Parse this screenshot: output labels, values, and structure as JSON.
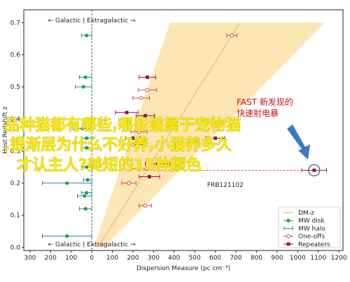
{
  "chart_data": {
    "type": "scatter",
    "xlabel": "Dispersion Measure (pc cm⁻³)",
    "ylabel": "Host Redshift z",
    "xlim": [
      -330,
      1220
    ],
    "ylim": [
      -0.01,
      0.74
    ],
    "x_ticks": [
      -300,
      -200,
      -100,
      0,
      100,
      200,
      300,
      400,
      500,
      600,
      700,
      800,
      900,
      1000,
      1100,
      1200
    ],
    "x_tick_labels": [
      "300",
      "200",
      "100",
      "0",
      "100",
      "200",
      "300",
      "400",
      "500",
      "600",
      "700",
      "800",
      "900",
      "1000",
      "1100",
      "1200"
    ],
    "y_ticks": [
      0.0,
      0.1,
      0.2,
      0.3,
      0.4,
      0.5,
      0.6,
      0.7
    ],
    "y_tick_labels": [
      "0.0",
      "0.1",
      "0.2",
      "0.3",
      "0.4",
      "0.5",
      "0.6",
      "0.7"
    ],
    "divider_top_label": "← Galactic | Extragalactic →",
    "divider_bottom_label": "← Galactic | Extragalactic →",
    "dm_z_band": {
      "z": [
        0.0,
        0.7
      ],
      "center": [
        30,
        720
      ],
      "low": [
        10,
        380
      ],
      "high": [
        60,
        1130
      ]
    },
    "mw_disk": {
      "x": [
        -25,
        -30,
        -40,
        -45,
        -25,
        -25,
        -25,
        -20,
        -25,
        -35,
        -120,
        -30,
        -120
      ],
      "y": [
        0.66,
        0.53,
        0.5,
        0.37,
        0.34,
        0.31,
        0.25,
        0.21,
        0.17,
        0.16,
        0.2,
        0.12,
        0.035
      ],
      "xerr": [
        25,
        30,
        40,
        45,
        25,
        25,
        25,
        20,
        25,
        35,
        120,
        30,
        120
      ]
    },
    "one_offs": {
      "x": [
        680,
        270,
        240,
        230,
        200,
        230,
        180,
        260
      ],
      "y": [
        0.66,
        0.49,
        0.465,
        0.36,
        0.32,
        0.245,
        0.2,
        0.13
      ],
      "xerr": [
        25,
        45,
        40,
        40,
        45,
        35,
        35,
        30
      ]
    },
    "repeaters": {
      "x": [
        270,
        170,
        260,
        200,
        600,
        320,
        280,
        1080
      ],
      "y": [
        0.53,
        0.42,
        0.41,
        0.34,
        0.34,
        0.26,
        0.22,
        0.24
      ],
      "xerr": [
        40,
        55,
        45,
        35,
        45,
        60,
        50,
        60
      ]
    },
    "annotations": [
      {
        "text": "FRB121102",
        "x": 560,
        "y": 0.195
      }
    ],
    "legend": {
      "position": "lower-right",
      "entries": [
        "DM-z",
        "MW disk",
        "MW halo",
        "One-offs",
        "Repeaters"
      ]
    }
  },
  "overlay": {
    "fast_label_line1": "FAST 新发现的",
    "fast_label_line2": "快速射电暴",
    "text_line1": "品种猫都有哪些,哪些猫属于宠物猫",
    "text_line2": ",银渐层为什么不好养,小猫养多久",
    "text_line3": "才认主人?美短的15种颜色"
  },
  "colors": {
    "band_fill": "#fbe6b4",
    "band_line": "#e6b964",
    "mw_disk": "#1aa34a",
    "mw_halo": "#2c7bb6",
    "one_offs": "#d44a5a",
    "repeaters": "#9b1030",
    "divider": "#555555",
    "arrow": "#3b78c8",
    "overlay_text": "#f7ea10"
  }
}
